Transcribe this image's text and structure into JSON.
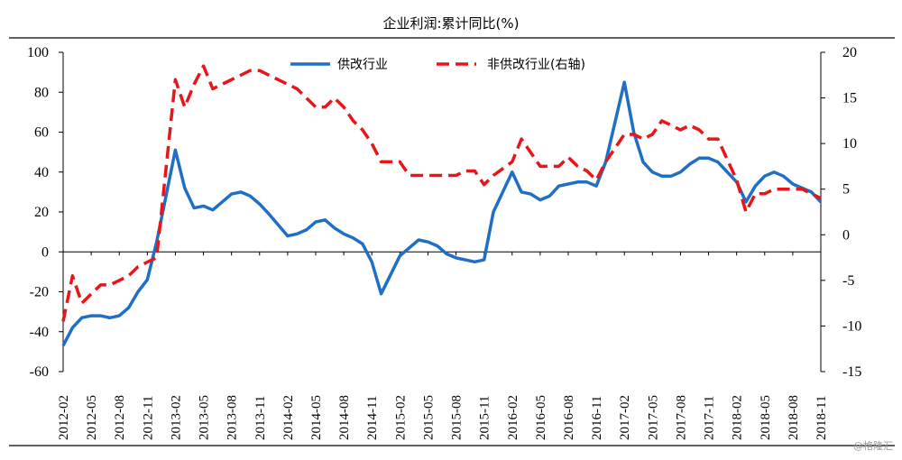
{
  "chart_data": {
    "type": "line",
    "title": "企业利润:累计同比(%)",
    "x_ticks": [
      "2012-02",
      "2012-05",
      "2012-08",
      "2012-11",
      "2013-02",
      "2013-05",
      "2013-08",
      "2013-11",
      "2014-02",
      "2014-05",
      "2014-08",
      "2014-11",
      "2015-02",
      "2015-05",
      "2015-08",
      "2015-11",
      "2016-02",
      "2016-05",
      "2016-08",
      "2016-11",
      "2017-02",
      "2017-05",
      "2017-08",
      "2017-11",
      "2018-02",
      "2018-05",
      "2018-08",
      "2018-11"
    ],
    "y_left": {
      "min": -60,
      "max": 100,
      "step": 20
    },
    "y_right": {
      "min": -15,
      "max": 20,
      "step": 5
    },
    "grid": false,
    "legend_position": "top-center",
    "series": [
      {
        "name": "供改行业",
        "axis": "left",
        "color": "#1f6fc5",
        "style": "solid",
        "x": [
          "2012-02",
          "2012-03",
          "2012-04",
          "2012-05",
          "2012-06",
          "2012-07",
          "2012-08",
          "2012-09",
          "2012-10",
          "2012-11",
          "2012-12",
          "2013-02",
          "2013-03",
          "2013-04",
          "2013-05",
          "2013-06",
          "2013-07",
          "2013-08",
          "2013-09",
          "2013-10",
          "2013-11",
          "2013-12",
          "2014-02",
          "2014-03",
          "2014-04",
          "2014-05",
          "2014-06",
          "2014-07",
          "2014-08",
          "2014-09",
          "2014-10",
          "2014-11",
          "2014-12",
          "2015-02",
          "2015-03",
          "2015-04",
          "2015-05",
          "2015-06",
          "2015-07",
          "2015-08",
          "2015-09",
          "2015-10",
          "2015-11",
          "2015-12",
          "2016-02",
          "2016-03",
          "2016-04",
          "2016-05",
          "2016-06",
          "2016-07",
          "2016-08",
          "2016-09",
          "2016-10",
          "2016-11",
          "2016-12",
          "2017-02",
          "2017-03",
          "2017-04",
          "2017-05",
          "2017-06",
          "2017-07",
          "2017-08",
          "2017-09",
          "2017-10",
          "2017-11",
          "2017-12",
          "2018-02",
          "2018-03",
          "2018-04",
          "2018-05",
          "2018-06",
          "2018-07",
          "2018-08",
          "2018-09",
          "2018-10",
          "2018-11"
        ],
        "values": [
          -47,
          -38,
          -33,
          -32,
          -32,
          -33,
          -32,
          -28,
          -20,
          -14,
          5,
          51,
          32,
          22,
          23,
          21,
          25,
          29,
          30,
          28,
          24,
          19,
          8,
          9,
          11,
          15,
          16,
          12,
          9,
          7,
          4,
          -5,
          -21,
          -2,
          2,
          6,
          5,
          3,
          -1,
          -3,
          -4,
          -5,
          -4,
          20,
          40,
          30,
          29,
          26,
          28,
          33,
          34,
          35,
          35,
          33,
          45,
          85,
          60,
          45,
          40,
          38,
          38,
          40,
          44,
          47,
          47,
          45,
          35,
          25,
          33,
          38,
          40,
          38,
          34,
          32,
          30,
          25
        ]
      },
      {
        "name": "非供改行业(右轴)",
        "axis": "right",
        "color": "#e8161a",
        "style": "dashed",
        "x": [
          "2012-02",
          "2012-03",
          "2012-04",
          "2012-05",
          "2012-06",
          "2012-07",
          "2012-08",
          "2012-09",
          "2012-10",
          "2012-11",
          "2012-12",
          "2013-02",
          "2013-03",
          "2013-04",
          "2013-05",
          "2013-06",
          "2013-07",
          "2013-08",
          "2013-09",
          "2013-10",
          "2013-11",
          "2013-12",
          "2014-02",
          "2014-03",
          "2014-04",
          "2014-05",
          "2014-06",
          "2014-07",
          "2014-08",
          "2014-09",
          "2014-10",
          "2014-11",
          "2014-12",
          "2015-02",
          "2015-03",
          "2015-04",
          "2015-05",
          "2015-06",
          "2015-07",
          "2015-08",
          "2015-09",
          "2015-10",
          "2015-11",
          "2015-12",
          "2016-02",
          "2016-03",
          "2016-04",
          "2016-05",
          "2016-06",
          "2016-07",
          "2016-08",
          "2016-09",
          "2016-10",
          "2016-11",
          "2016-12",
          "2017-02",
          "2017-03",
          "2017-04",
          "2017-05",
          "2017-06",
          "2017-07",
          "2017-08",
          "2017-09",
          "2017-10",
          "2017-11",
          "2017-12",
          "2018-02",
          "2018-03",
          "2018-04",
          "2018-05",
          "2018-06",
          "2018-07",
          "2018-08",
          "2018-09",
          "2018-10",
          "2018-11"
        ],
        "values": [
          -9.5,
          -4.5,
          -7.5,
          -6.5,
          -5.5,
          -5.5,
          -5,
          -4.5,
          -3.5,
          -3,
          -2.5,
          17,
          14,
          16.5,
          18.5,
          16,
          16.5,
          17,
          17.5,
          18,
          18,
          17.5,
          16.5,
          16,
          15,
          14,
          14,
          15,
          14,
          12.5,
          11.5,
          10,
          8,
          8,
          6.5,
          6.5,
          6.5,
          6.5,
          6.5,
          6.5,
          7,
          7,
          5.5,
          6.5,
          8,
          10.5,
          9,
          7.5,
          7.5,
          7.5,
          8.5,
          7.5,
          7,
          6,
          8,
          11,
          11,
          10.5,
          11,
          12.5,
          12,
          11.5,
          12,
          11.5,
          10.5,
          10.5,
          6,
          2.5,
          4.5,
          4.5,
          5,
          5,
          5,
          5,
          4.5,
          4
        ]
      }
    ]
  },
  "watermark": "@格隆汇"
}
